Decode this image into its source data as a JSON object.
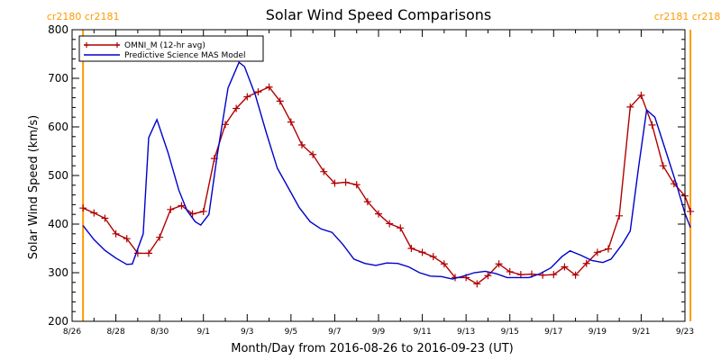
{
  "chart_data": {
    "type": "line",
    "title": "Solar Wind Speed Comparisons",
    "xlabel": "Month/Day from 2016-08-26 to 2016-09-23 (UT)",
    "ylabel": "Solar Wind Speed (km/s)",
    "ylim": [
      200,
      800
    ],
    "xlim": [
      "2016-08-26",
      "2016-09-23"
    ],
    "y_ticks": [
      200,
      300,
      400,
      500,
      600,
      700,
      800
    ],
    "x_ticks": [
      {
        "date": "2016-08-26",
        "label": "8/26"
      },
      {
        "date": "2016-08-28",
        "label": "8/28"
      },
      {
        "date": "2016-08-30",
        "label": "8/30"
      },
      {
        "date": "2016-09-01",
        "label": "9/1"
      },
      {
        "date": "2016-09-03",
        "label": "9/3"
      },
      {
        "date": "2016-09-05",
        "label": "9/5"
      },
      {
        "date": "2016-09-07",
        "label": "9/7"
      },
      {
        "date": "2016-09-09",
        "label": "9/9"
      },
      {
        "date": "2016-09-11",
        "label": "9/11"
      },
      {
        "date": "2016-09-13",
        "label": "9/13"
      },
      {
        "date": "2016-09-15",
        "label": "9/15"
      },
      {
        "date": "2016-09-17",
        "label": "9/17"
      },
      {
        "date": "2016-09-19",
        "label": "9/19"
      },
      {
        "date": "2016-09-21",
        "label": "9/21"
      },
      {
        "date": "2016-09-23",
        "label": "9/23"
      }
    ],
    "legend_position": "top-left",
    "series": [
      {
        "name": "OMNI_M (12-hr avg)",
        "color": "#b00000",
        "marker": "plus",
        "points": [
          [
            "2016-08-26 12:00",
            433
          ],
          [
            "2016-08-27 00:00",
            423
          ],
          [
            "2016-08-27 12:00",
            412
          ],
          [
            "2016-08-28 00:00",
            380
          ],
          [
            "2016-08-28 12:00",
            370
          ],
          [
            "2016-08-29 00:00",
            340
          ],
          [
            "2016-08-29 12:00",
            340
          ],
          [
            "2016-08-30 00:00",
            373
          ],
          [
            "2016-08-30 12:00",
            430
          ],
          [
            "2016-08-31 00:00",
            438
          ],
          [
            "2016-08-31 12:00",
            421
          ],
          [
            "2016-09-01 00:00",
            426
          ],
          [
            "2016-09-01 12:00",
            535
          ],
          [
            "2016-09-02 00:00",
            605
          ],
          [
            "2016-09-02 12:00",
            638
          ],
          [
            "2016-09-03 00:00",
            662
          ],
          [
            "2016-09-03 12:00",
            672
          ],
          [
            "2016-09-04 00:00",
            682
          ],
          [
            "2016-09-04 12:00",
            653
          ],
          [
            "2016-09-05 00:00",
            610
          ],
          [
            "2016-09-05 12:00",
            563
          ],
          [
            "2016-09-06 00:00",
            543
          ],
          [
            "2016-09-06 12:00",
            508
          ],
          [
            "2016-09-07 00:00",
            484
          ],
          [
            "2016-09-07 12:00",
            486
          ],
          [
            "2016-09-08 00:00",
            481
          ],
          [
            "2016-09-08 12:00",
            446
          ],
          [
            "2016-09-09 00:00",
            421
          ],
          [
            "2016-09-09 12:00",
            401
          ],
          [
            "2016-09-10 00:00",
            392
          ],
          [
            "2016-09-10 12:00",
            350
          ],
          [
            "2016-09-11 00:00",
            342
          ],
          [
            "2016-09-11 12:00",
            333
          ],
          [
            "2016-09-12 00:00",
            318
          ],
          [
            "2016-09-12 12:00",
            290
          ],
          [
            "2016-09-13 00:00",
            290
          ],
          [
            "2016-09-13 12:00",
            277
          ],
          [
            "2016-09-14 00:00",
            294
          ],
          [
            "2016-09-14 12:00",
            318
          ],
          [
            "2016-09-15 00:00",
            302
          ],
          [
            "2016-09-15 12:00",
            296
          ],
          [
            "2016-09-16 00:00",
            297
          ],
          [
            "2016-09-16 12:00",
            295
          ],
          [
            "2016-09-17 00:00",
            296
          ],
          [
            "2016-09-17 12:00",
            312
          ],
          [
            "2016-09-18 00:00",
            295
          ],
          [
            "2016-09-18 12:00",
            319
          ],
          [
            "2016-09-19 00:00",
            342
          ],
          [
            "2016-09-19 12:00",
            349
          ],
          [
            "2016-09-20 00:00",
            417
          ],
          [
            "2016-09-20 12:00",
            641
          ],
          [
            "2016-09-21 00:00",
            665
          ],
          [
            "2016-09-21 12:00",
            604
          ],
          [
            "2016-09-22 00:00",
            520
          ],
          [
            "2016-09-22 12:00",
            483
          ],
          [
            "2016-09-23 00:00",
            458
          ],
          [
            "2016-09-23 06:00",
            426
          ]
        ]
      },
      {
        "name": "Predictive Science MAS Model",
        "color": "#0000cc",
        "marker": "none",
        "points": [
          [
            "2016-08-26 12:00",
            397
          ],
          [
            "2016-08-27 00:00",
            368
          ],
          [
            "2016-08-27 12:00",
            346
          ],
          [
            "2016-08-28 00:00",
            330
          ],
          [
            "2016-08-28 12:00",
            317
          ],
          [
            "2016-08-28 18:00",
            318
          ],
          [
            "2016-08-29 06:00",
            380
          ],
          [
            "2016-08-29 12:00",
            578
          ],
          [
            "2016-08-29 21:00",
            615
          ],
          [
            "2016-08-30 09:00",
            548
          ],
          [
            "2016-08-30 21:00",
            470
          ],
          [
            "2016-08-31 06:00",
            428
          ],
          [
            "2016-08-31 15:00",
            405
          ],
          [
            "2016-08-31 21:00",
            398
          ],
          [
            "2016-09-01 06:00",
            420
          ],
          [
            "2016-09-01 15:00",
            540
          ],
          [
            "2016-09-02 03:00",
            680
          ],
          [
            "2016-09-02 15:00",
            733
          ],
          [
            "2016-09-02 21:00",
            724
          ],
          [
            "2016-09-03 09:00",
            665
          ],
          [
            "2016-09-03 21:00",
            588
          ],
          [
            "2016-09-04 09:00",
            515
          ],
          [
            "2016-09-04 21:00",
            475
          ],
          [
            "2016-09-05 09:00",
            434
          ],
          [
            "2016-09-05 21:00",
            405
          ],
          [
            "2016-09-06 09:00",
            390
          ],
          [
            "2016-09-06 21:00",
            383
          ],
          [
            "2016-09-07 09:00",
            358
          ],
          [
            "2016-09-07 21:00",
            328
          ],
          [
            "2016-09-08 09:00",
            319
          ],
          [
            "2016-09-08 21:00",
            315
          ],
          [
            "2016-09-09 09:00",
            320
          ],
          [
            "2016-09-09 21:00",
            319
          ],
          [
            "2016-09-10 09:00",
            312
          ],
          [
            "2016-09-10 21:00",
            300
          ],
          [
            "2016-09-11 09:00",
            293
          ],
          [
            "2016-09-11 21:00",
            292
          ],
          [
            "2016-09-12 09:00",
            287
          ],
          [
            "2016-09-12 21:00",
            293
          ],
          [
            "2016-09-13 09:00",
            300
          ],
          [
            "2016-09-13 21:00",
            303
          ],
          [
            "2016-09-14 09:00",
            298
          ],
          [
            "2016-09-14 21:00",
            290
          ],
          [
            "2016-09-15 09:00",
            290
          ],
          [
            "2016-09-15 21:00",
            290
          ],
          [
            "2016-09-16 09:00",
            298
          ],
          [
            "2016-09-16 21:00",
            310
          ],
          [
            "2016-09-17 09:00",
            333
          ],
          [
            "2016-09-17 18:00",
            345
          ],
          [
            "2016-09-18 06:00",
            336
          ],
          [
            "2016-09-18 18:00",
            325
          ],
          [
            "2016-09-19 06:00",
            321
          ],
          [
            "2016-09-19 15:00",
            328
          ],
          [
            "2016-09-20 03:00",
            358
          ],
          [
            "2016-09-20 12:00",
            386
          ],
          [
            "2016-09-20 21:00",
            515
          ],
          [
            "2016-09-21 06:00",
            635
          ],
          [
            "2016-09-21 15:00",
            620
          ],
          [
            "2016-09-22 03:00",
            550
          ],
          [
            "2016-09-22 15:00",
            480
          ],
          [
            "2016-09-23 00:00",
            422
          ],
          [
            "2016-09-23 06:00",
            393
          ]
        ]
      }
    ],
    "vlines": [
      {
        "date": "2016-08-26 12:00",
        "color": "#ff9900",
        "label": "cr2180 cr2181"
      },
      {
        "date": "2016-09-23 06:00",
        "color": "#ff9900",
        "label": "cr2181 cr2182"
      }
    ]
  }
}
